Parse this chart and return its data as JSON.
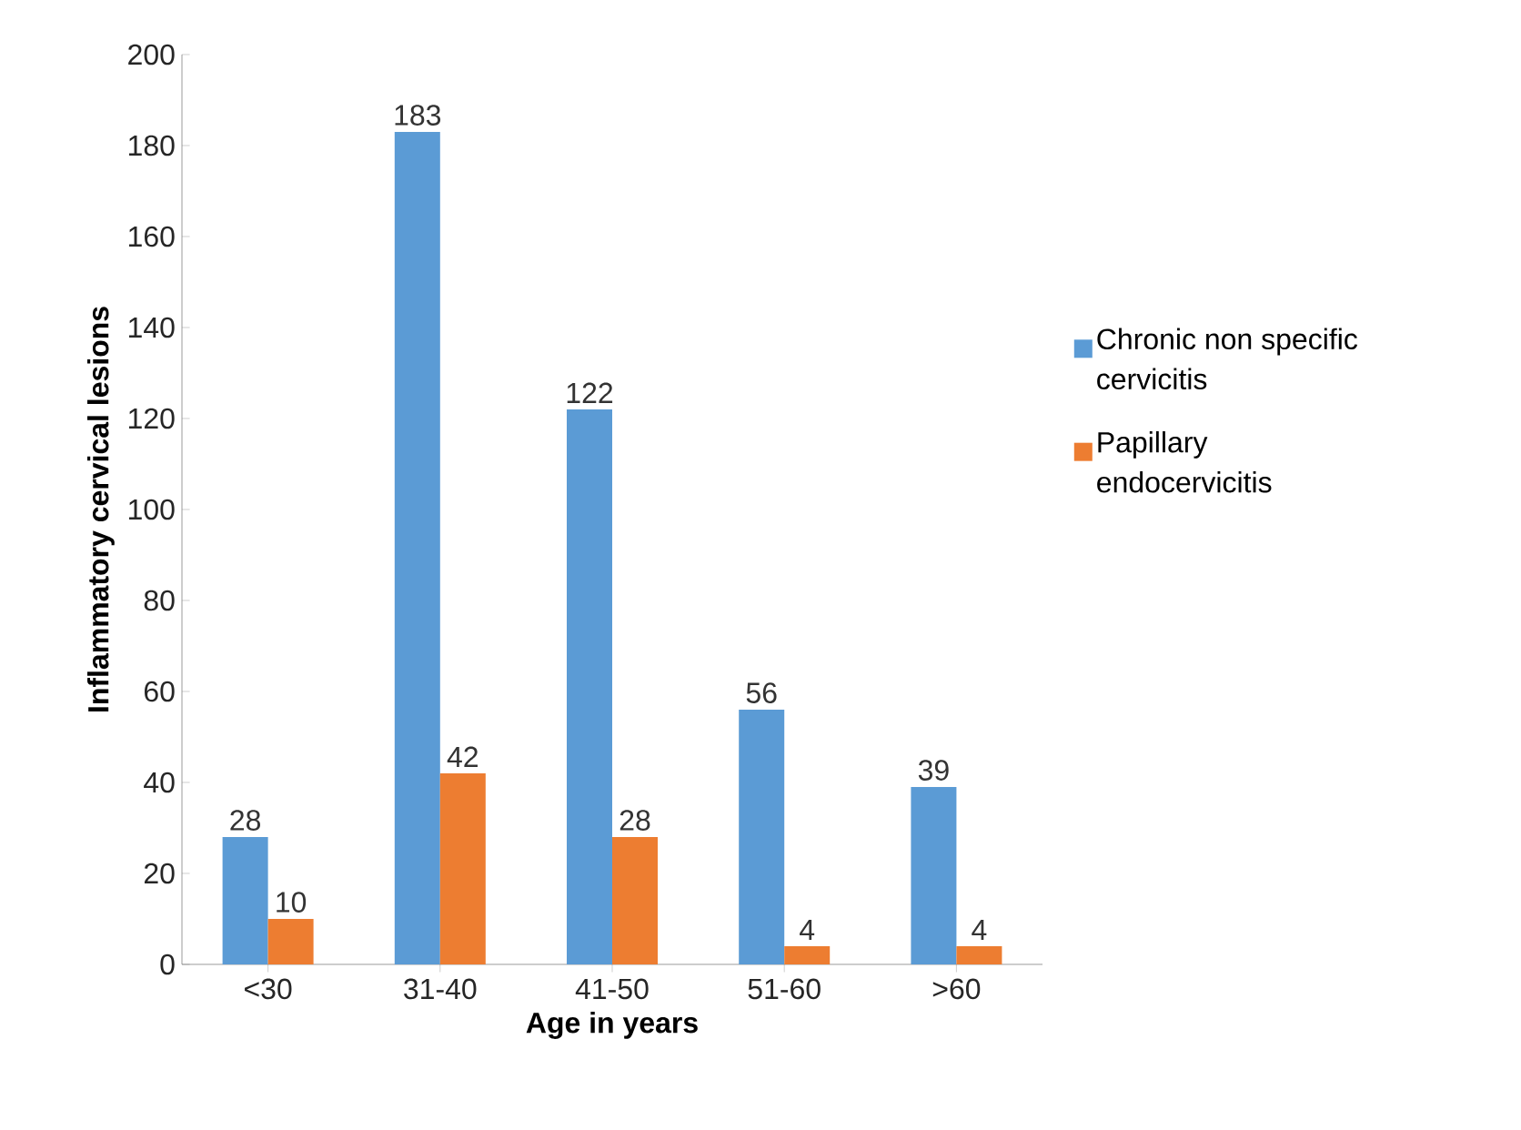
{
  "chart_data": {
    "type": "bar",
    "xlabel": "Age in years",
    "ylabel": "Inflammatory cervical lesions",
    "categories": [
      "<30",
      "31-40",
      "41-50",
      "51-60",
      ">60"
    ],
    "series": [
      {
        "name": "Chronic non specific cervicitis",
        "color": "#5b9bd5",
        "values": [
          28,
          183,
          122,
          56,
          39
        ]
      },
      {
        "name": "Papillary endocervicitis",
        "color": "#ed7d31",
        "values": [
          10,
          42,
          28,
          4,
          4
        ]
      }
    ],
    "ylim": [
      0,
      200
    ],
    "yticks": [
      0,
      20,
      40,
      60,
      80,
      100,
      120,
      140,
      160,
      180,
      200
    ],
    "data_labels": true,
    "legend": "right",
    "grid": false
  }
}
